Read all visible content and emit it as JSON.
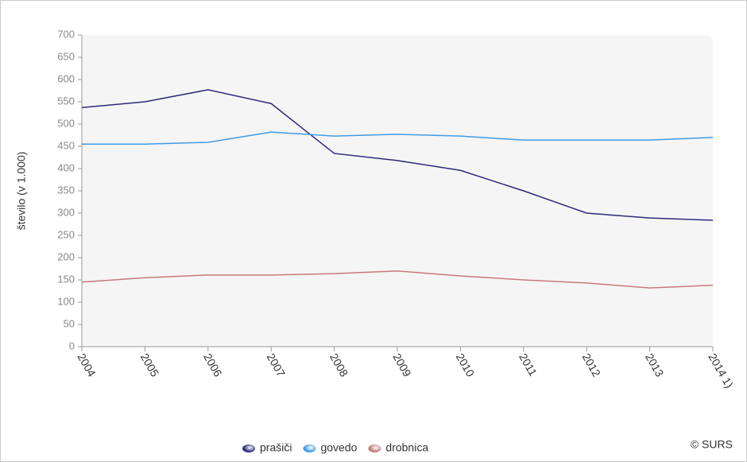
{
  "chart_data": {
    "type": "line",
    "y_label": "število (v 1.000)",
    "credit": "© SURS",
    "categories": [
      "2004",
      "2005",
      "2006",
      "2007",
      "2008",
      "2009",
      "2010",
      "2011",
      "2012",
      "2013",
      "2014 1)"
    ],
    "series": [
      {
        "name": "prašiči",
        "color": "#2e2a7a",
        "values": [
          537,
          550,
          577,
          546,
          434,
          418,
          396,
          350,
          300,
          289,
          284
        ]
      },
      {
        "name": "govedo",
        "color": "#3f9be6",
        "values": [
          455,
          455,
          459,
          482,
          473,
          477,
          473,
          464,
          464,
          464,
          470
        ]
      },
      {
        "name": "drobnica",
        "color": "#c87a7a",
        "values": [
          145,
          155,
          161,
          161,
          164,
          170,
          159,
          150,
          143,
          132,
          138
        ]
      }
    ],
    "ylim": [
      0,
      700
    ],
    "yticks": [
      0,
      50,
      100,
      150,
      200,
      250,
      300,
      350,
      400,
      450,
      500,
      550,
      600,
      650,
      700
    ],
    "grid": false
  }
}
